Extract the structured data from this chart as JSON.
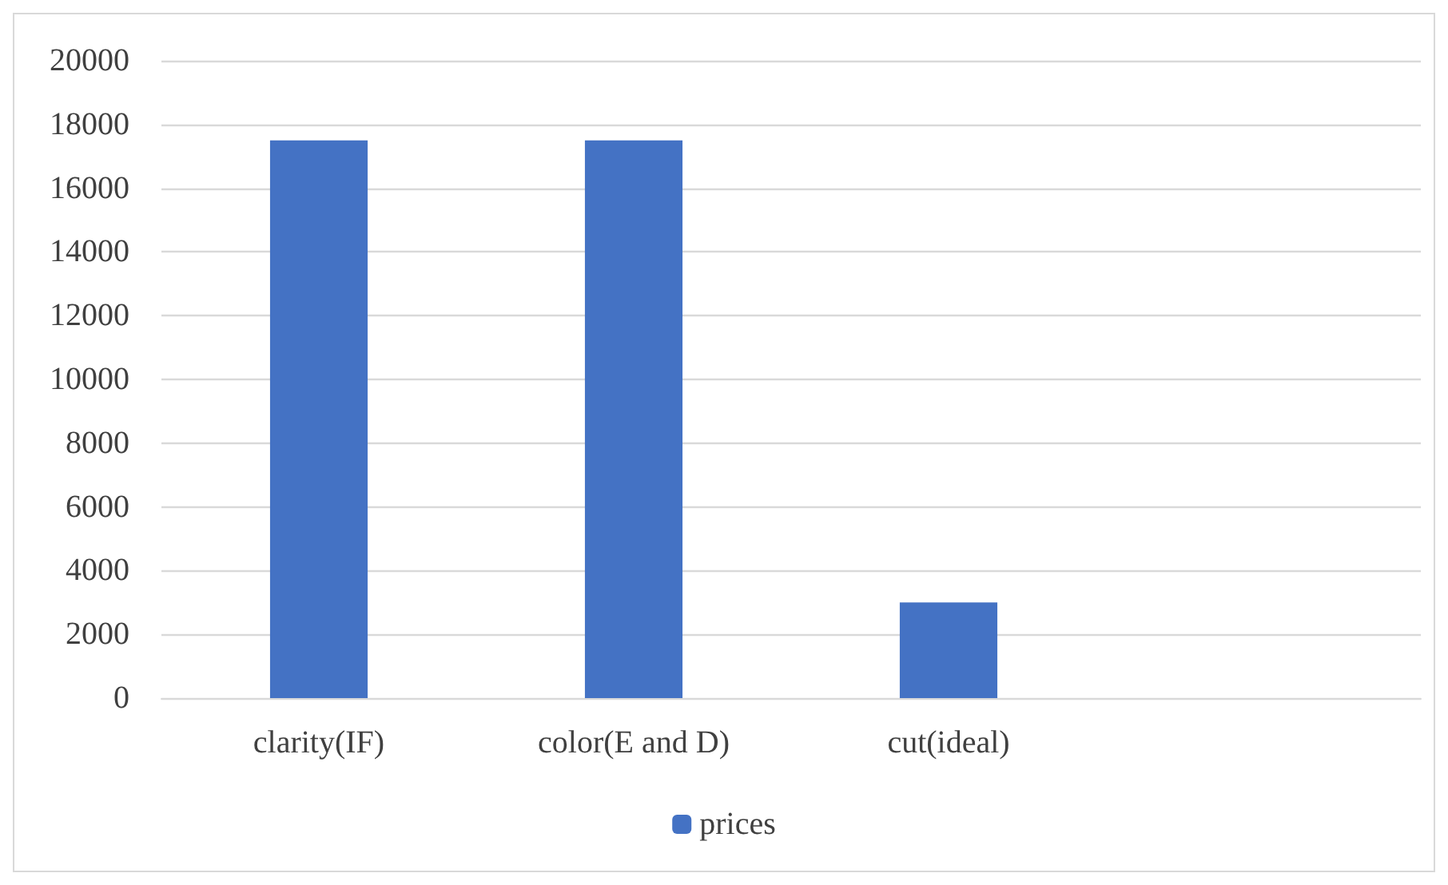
{
  "chart_data": {
    "type": "bar",
    "categories": [
      "clarity(IF)",
      "color(E and D)",
      "cut(ideal)",
      null
    ],
    "series": [
      {
        "name": "prices",
        "color": "#4472c4",
        "values": [
          17500,
          17500,
          3000,
          null
        ]
      }
    ],
    "ylim": [
      0,
      20000
    ],
    "yticks": [
      0,
      2000,
      4000,
      6000,
      8000,
      10000,
      12000,
      14000,
      16000,
      18000,
      20000
    ],
    "grid": "y",
    "legend": "bottom"
  }
}
